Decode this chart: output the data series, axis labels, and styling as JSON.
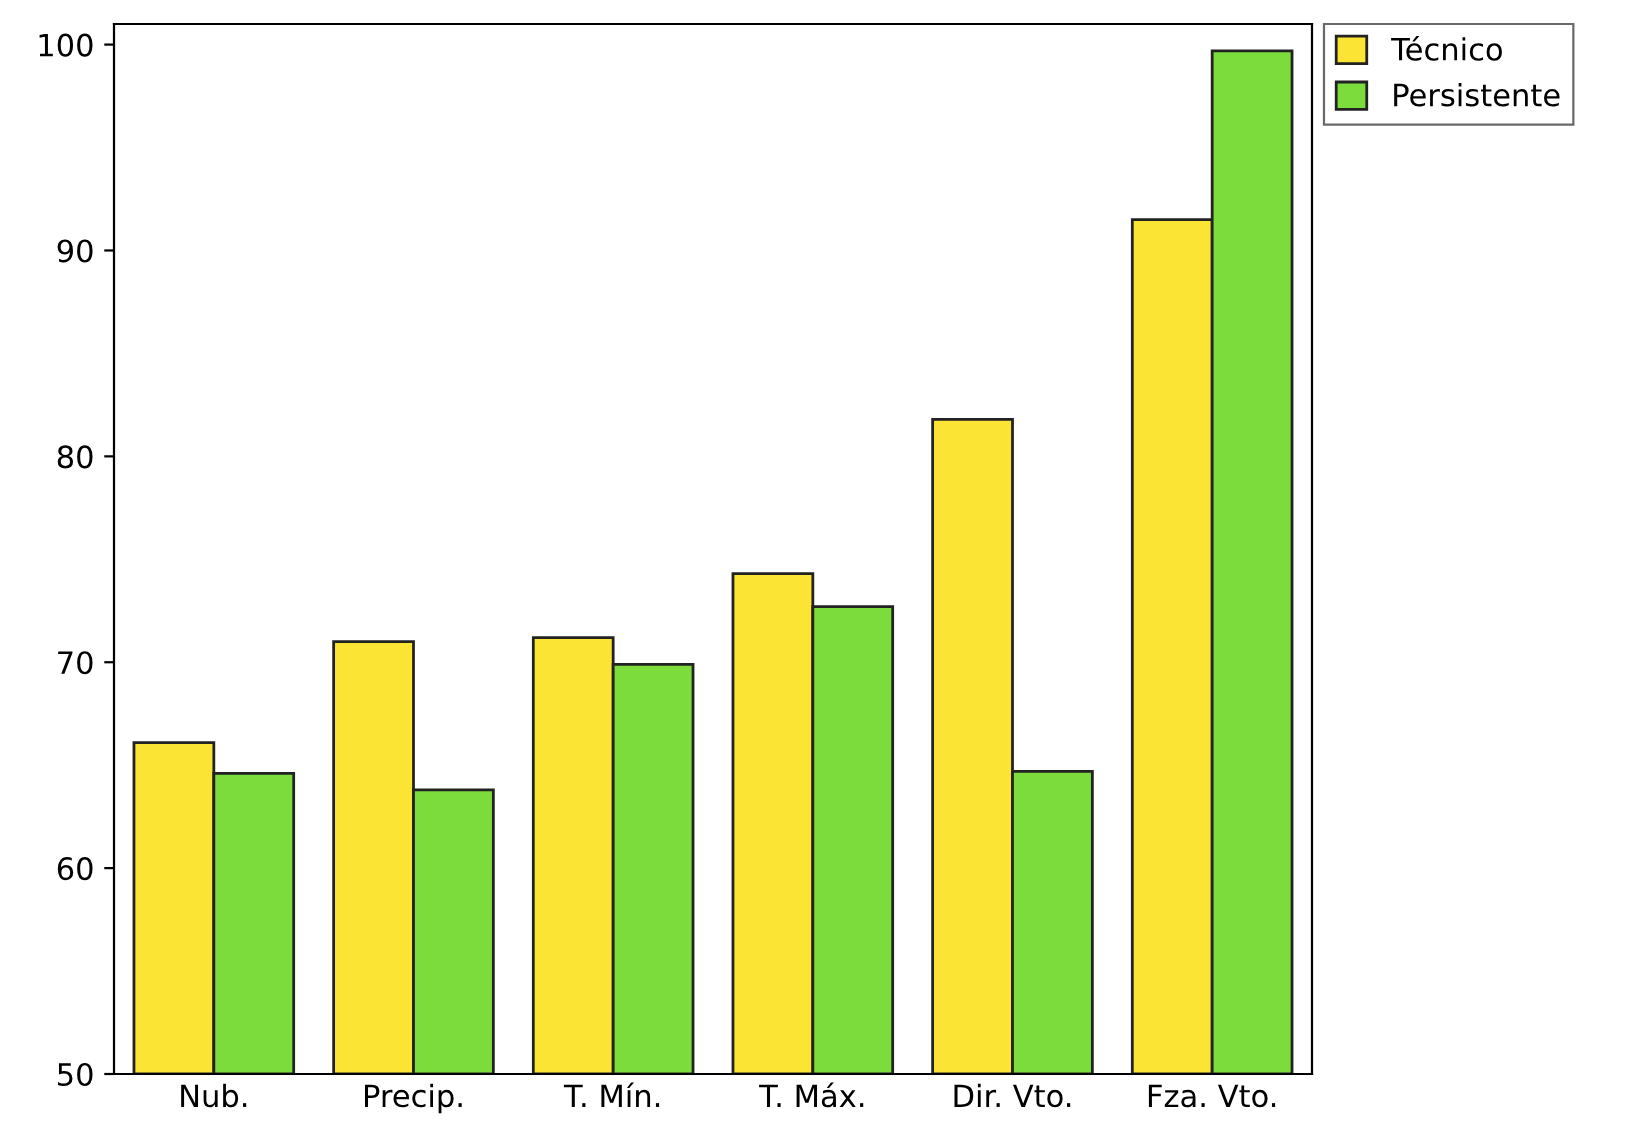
{
  "chart_data": {
    "type": "bar",
    "categories": [
      "Nub.",
      "Precip.",
      "T. Mín.",
      "T. Máx.",
      "Dir. Vto.",
      "Fza. Vto."
    ],
    "series": [
      {
        "name": "Técnico",
        "color": "#fbe433",
        "values": [
          66.1,
          71.0,
          71.2,
          74.3,
          81.8,
          91.5
        ]
      },
      {
        "name": "Persistente",
        "color": "#7bdc3c",
        "values": [
          64.6,
          63.8,
          69.9,
          72.7,
          64.7,
          99.7
        ]
      }
    ],
    "ylim": [
      50,
      101
    ],
    "yticks": [
      50,
      60,
      70,
      80,
      90,
      100
    ],
    "grid": false,
    "legend": "top right"
  }
}
